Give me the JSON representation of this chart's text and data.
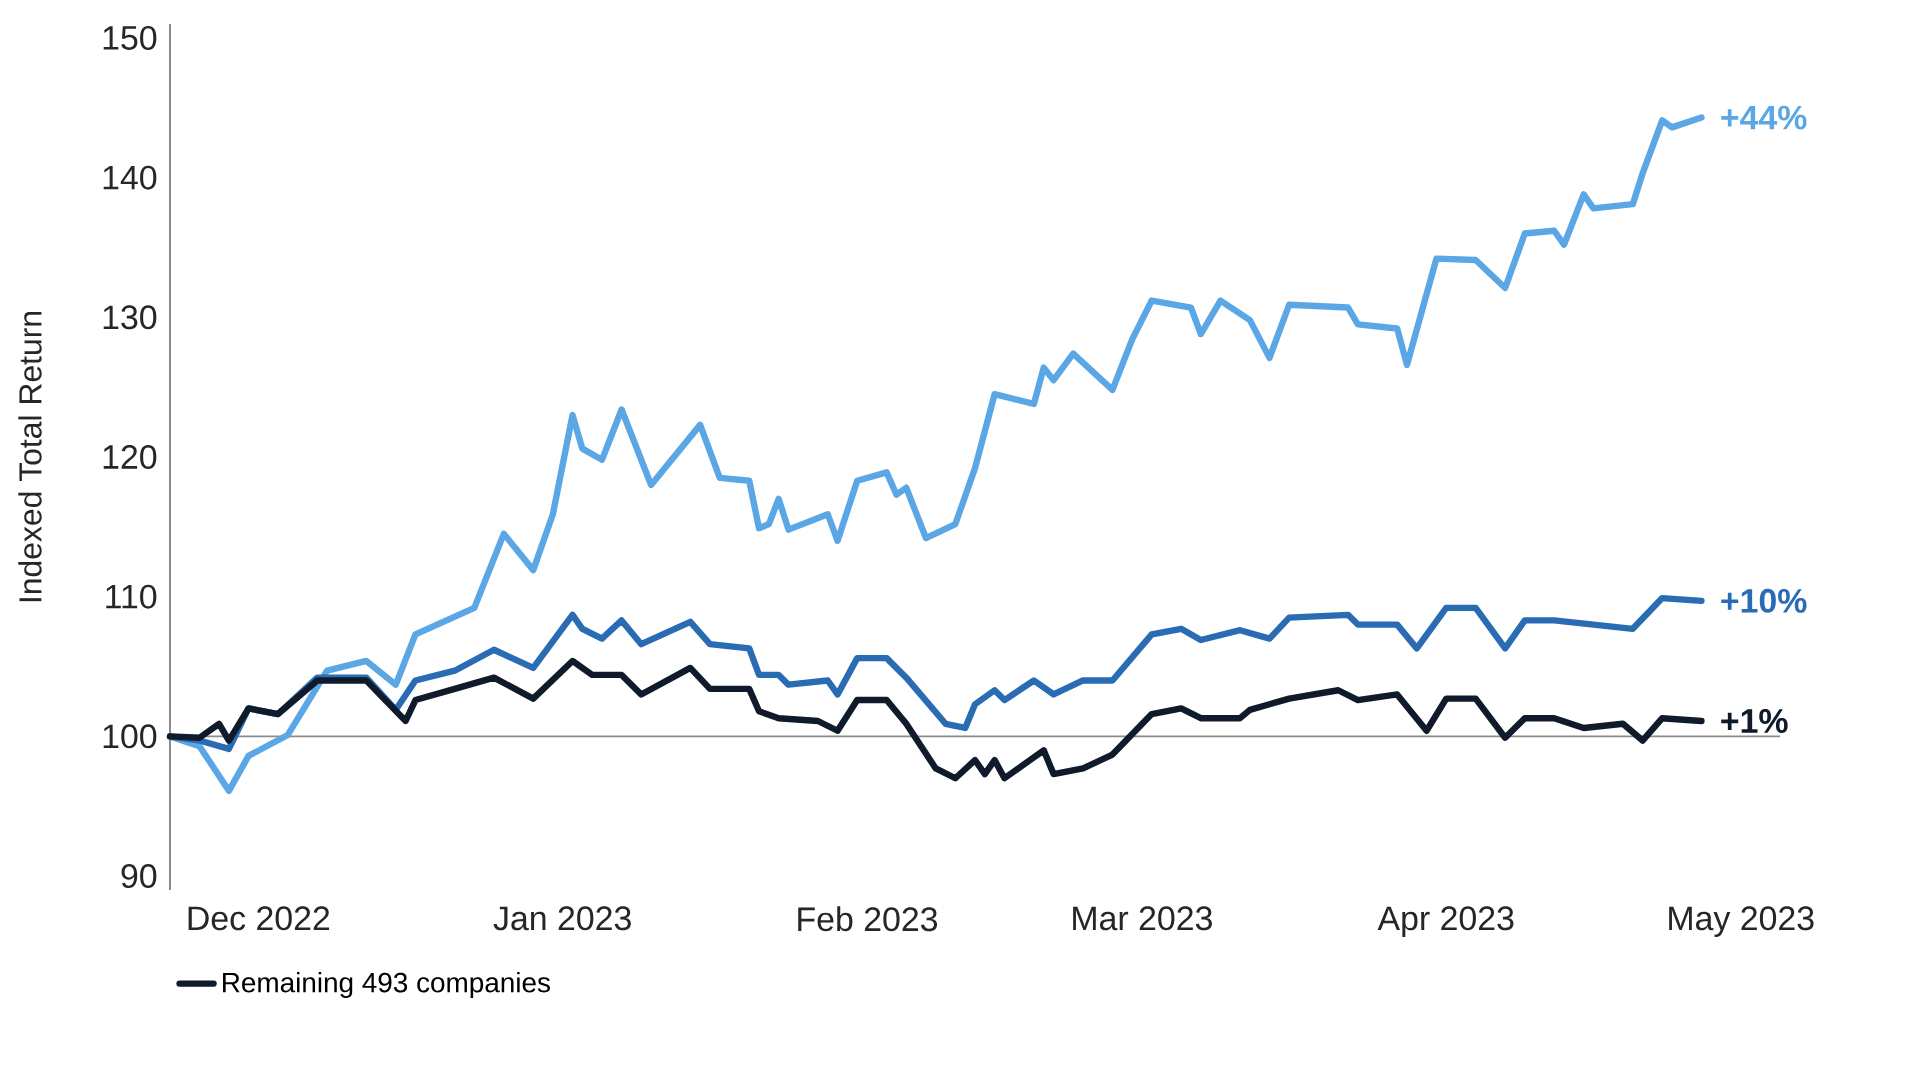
{
  "chart_data": {
    "type": "line",
    "ylabel": "Indexed Total Return",
    "xlim": [
      "2022-11-22",
      "2023-05-05"
    ],
    "xticks": [
      {
        "value": "2022-12-01",
        "label": "Dec 2022"
      },
      {
        "value": "2023-01-01",
        "label": "Jan 2023"
      },
      {
        "value": "2023-02-01",
        "label": "Feb 2023"
      },
      {
        "value": "2023-03-01",
        "label": "Mar 2023"
      },
      {
        "value": "2023-04-01",
        "label": "Apr 2023"
      },
      {
        "value": "2023-05-01",
        "label": "May 2023"
      }
    ],
    "ylim": [
      89,
      151
    ],
    "yticks": [
      90,
      100,
      110,
      120,
      130,
      140,
      150
    ],
    "grid": false,
    "legend": "bottom",
    "marker": "none",
    "line_style": "solid",
    "ref_lines": [
      {
        "axis": "y",
        "value": 100,
        "color": "#8c8c8c"
      }
    ],
    "annotations": [
      {
        "text": "+44%",
        "x": "2023-04-27",
        "y": 144.3
      },
      {
        "text": "+10%",
        "x": "2023-04-27",
        "y": 109.7
      },
      {
        "text": "+1%",
        "x": "2023-04-27",
        "y": 101.1
      }
    ],
    "series": [
      {
        "color": "#5ba6e4",
        "x": [
          "2022-11-22",
          "2022-11-25",
          "2022-11-28",
          "2022-11-30",
          "2022-12-04",
          "2022-12-08",
          "2022-12-12",
          "2022-12-15",
          "2022-12-17",
          "2022-12-23",
          "2022-12-26",
          "2022-12-29",
          "2022-12-31",
          "2023-01-02",
          "2023-01-03",
          "2023-01-05",
          "2023-01-07",
          "2023-01-10",
          "2023-01-15",
          "2023-01-17",
          "2023-01-20",
          "2023-01-21",
          "2023-01-22",
          "2023-01-23",
          "2023-01-24",
          "2023-01-28",
          "2023-01-29",
          "2023-01-31",
          "2023-02-03",
          "2023-02-04",
          "2023-02-05",
          "2023-02-07",
          "2023-02-10",
          "2023-02-12",
          "2023-02-14",
          "2023-02-18",
          "2023-02-19",
          "2023-02-20",
          "2023-02-22",
          "2023-02-26",
          "2023-02-28",
          "2023-03-02",
          "2023-03-06",
          "2023-03-07",
          "2023-03-09",
          "2023-03-12",
          "2023-03-14",
          "2023-03-16",
          "2023-03-22",
          "2023-03-23",
          "2023-03-27",
          "2023-03-28",
          "2023-03-31",
          "2023-04-04",
          "2023-04-07",
          "2023-04-09",
          "2023-04-12",
          "2023-04-13",
          "2023-04-15",
          "2023-04-16",
          "2023-04-20",
          "2023-04-21",
          "2023-04-23",
          "2023-04-24",
          "2023-04-27"
        ],
        "values": [
          100,
          99.3,
          96.1,
          98.6,
          100.1,
          104.7,
          105.4,
          103.7,
          107.3,
          109.2,
          114.5,
          111.9,
          115.9,
          123,
          120.6,
          119.8,
          123.4,
          118,
          122.3,
          118.5,
          118.3,
          114.9,
          115.2,
          117,
          114.8,
          115.9,
          114,
          118.3,
          118.9,
          117.3,
          117.8,
          114.2,
          115.2,
          119.2,
          124.5,
          123.8,
          126.4,
          125.5,
          127.4,
          124.8,
          128.4,
          131.2,
          130.7,
          128.8,
          131.2,
          129.8,
          127.1,
          130.9,
          130.7,
          129.5,
          129.2,
          126.6,
          134.2,
          134.1,
          132.1,
          136,
          136.2,
          135.2,
          138.8,
          137.8,
          138.1,
          140.3,
          144.1,
          143.6,
          144.3
        ]
      },
      {
        "color": "#2a6cb3",
        "x": [
          "2022-11-22",
          "2022-11-25",
          "2022-11-28",
          "2022-11-30",
          "2022-12-03",
          "2022-12-07",
          "2022-12-12",
          "2022-12-15",
          "2022-12-17",
          "2022-12-21",
          "2022-12-25",
          "2022-12-29",
          "2023-01-02",
          "2023-01-03",
          "2023-01-05",
          "2023-01-07",
          "2023-01-09",
          "2023-01-14",
          "2023-01-16",
          "2023-01-20",
          "2023-01-21",
          "2023-01-23",
          "2023-01-24",
          "2023-01-28",
          "2023-01-29",
          "2023-01-31",
          "2023-02-03",
          "2023-02-05",
          "2023-02-09",
          "2023-02-11",
          "2023-02-12",
          "2023-02-14",
          "2023-02-15",
          "2023-02-18",
          "2023-02-20",
          "2023-02-23",
          "2023-02-26",
          "2023-03-02",
          "2023-03-05",
          "2023-03-07",
          "2023-03-11",
          "2023-03-14",
          "2023-03-16",
          "2023-03-22",
          "2023-03-23",
          "2023-03-27",
          "2023-03-29",
          "2023-04-01",
          "2023-04-04",
          "2023-04-07",
          "2023-04-09",
          "2023-04-12",
          "2023-04-16",
          "2023-04-20",
          "2023-04-23",
          "2023-04-27"
        ],
        "values": [
          100,
          99.7,
          99.1,
          102,
          101.6,
          104.2,
          104.2,
          101.9,
          104,
          104.7,
          106.2,
          104.9,
          108.7,
          107.7,
          107,
          108.3,
          106.6,
          108.2,
          106.6,
          106.3,
          104.4,
          104.4,
          103.7,
          104,
          103,
          105.6,
          105.6,
          104.2,
          100.9,
          100.6,
          102.3,
          103.3,
          102.6,
          104,
          103,
          104,
          104,
          107.3,
          107.7,
          106.9,
          107.6,
          107,
          108.5,
          108.7,
          108,
          108,
          106.3,
          109.2,
          109.2,
          106.3,
          108.3,
          108.3,
          108,
          107.7,
          109.9,
          109.7
        ]
      },
      {
        "name": "Remaining 493 companies",
        "color": "#0f1a2b",
        "x": [
          "2022-11-22",
          "2022-11-25",
          "2022-11-27",
          "2022-11-28",
          "2022-11-30",
          "2022-12-03",
          "2022-12-07",
          "2022-12-12",
          "2022-12-16",
          "2022-12-17",
          "2022-12-21",
          "2022-12-25",
          "2022-12-29",
          "2023-01-02",
          "2023-01-04",
          "2023-01-07",
          "2023-01-09",
          "2023-01-14",
          "2023-01-16",
          "2023-01-20",
          "2023-01-21",
          "2023-01-23",
          "2023-01-27",
          "2023-01-29",
          "2023-01-31",
          "2023-02-03",
          "2023-02-05",
          "2023-02-08",
          "2023-02-10",
          "2023-02-12",
          "2023-02-13",
          "2023-02-14",
          "2023-02-15",
          "2023-02-19",
          "2023-02-20",
          "2023-02-23",
          "2023-02-26",
          "2023-03-02",
          "2023-03-05",
          "2023-03-07",
          "2023-03-11",
          "2023-03-12",
          "2023-03-14",
          "2023-03-16",
          "2023-03-21",
          "2023-03-23",
          "2023-03-27",
          "2023-03-30",
          "2023-04-01",
          "2023-04-04",
          "2023-04-07",
          "2023-04-09",
          "2023-04-12",
          "2023-04-15",
          "2023-04-19",
          "2023-04-21",
          "2023-04-23",
          "2023-04-27"
        ],
        "values": [
          100,
          99.9,
          100.9,
          99.7,
          102,
          101.6,
          104,
          104,
          101.1,
          102.6,
          103.4,
          104.2,
          102.7,
          105.4,
          104.4,
          104.4,
          103,
          104.9,
          103.4,
          103.4,
          101.8,
          101.3,
          101.1,
          100.4,
          102.6,
          102.6,
          100.9,
          97.7,
          97,
          98.3,
          97.3,
          98.3,
          97,
          99,
          97.3,
          97.7,
          98.7,
          101.6,
          102,
          101.3,
          101.3,
          101.9,
          102.3,
          102.7,
          103.3,
          102.6,
          103,
          100.4,
          102.7,
          102.7,
          99.9,
          101.3,
          101.3,
          100.6,
          100.9,
          99.7,
          101.3,
          101.1
        ]
      }
    ]
  }
}
